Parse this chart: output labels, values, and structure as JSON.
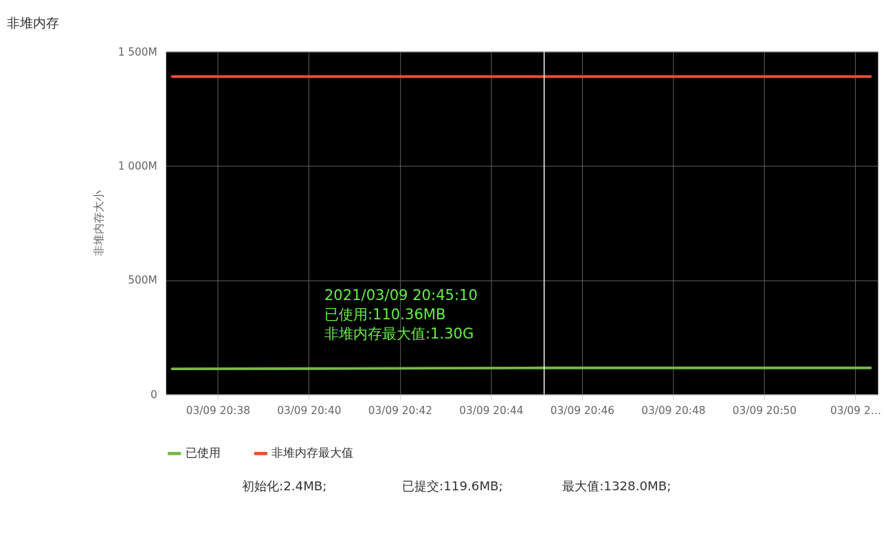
{
  "chart_data": {
    "type": "line",
    "title": "非堆内存",
    "ylabel": "非堆内存大小",
    "x": [
      "2021-03-09T20:37:00",
      "2021-03-09T20:40:00",
      "2021-03-09T20:43:00",
      "2021-03-09T20:45:10",
      "2021-03-09T20:48:00",
      "2021-03-09T20:52:20"
    ],
    "series": [
      {
        "name": "已使用",
        "color": "#7ab648",
        "values": [
          112,
          113,
          115,
          116,
          116,
          116
        ]
      },
      {
        "name": "非堆内存最大值",
        "color": "#e8512f",
        "values": [
          1392,
          1392,
          1392,
          1392,
          1392,
          1392
        ]
      }
    ],
    "xlim": [
      "2021-03-09T20:36:52",
      "2021-03-09T20:52:30"
    ],
    "xticks": [
      {
        "value": "2021-03-09T20:38:00",
        "label": "03/09 20:38"
      },
      {
        "value": "2021-03-09T20:40:00",
        "label": "03/09 20:40"
      },
      {
        "value": "2021-03-09T20:42:00",
        "label": "03/09 20:42"
      },
      {
        "value": "2021-03-09T20:44:00",
        "label": "03/09 20:44"
      },
      {
        "value": "2021-03-09T20:46:00",
        "label": "03/09 20:46"
      },
      {
        "value": "2021-03-09T20:48:00",
        "label": "03/09 20:48"
      },
      {
        "value": "2021-03-09T20:50:00",
        "label": "03/09 20:50"
      },
      {
        "value": "2021-03-09T20:52:00",
        "label": "03/09 2…"
      }
    ],
    "ylim": [
      0,
      1500
    ],
    "yticks": [
      0,
      {
        "value": 500,
        "label": "500M"
      },
      {
        "value": 1000,
        "label": "1 000M"
      },
      {
        "value": 1500,
        "label": "1 500M"
      }
    ],
    "grid": true,
    "legend": "bottom",
    "marker": "none",
    "line_style": "solid",
    "ref_lines": [
      {
        "axis": "x",
        "value": "2021-03-09T20:45:10",
        "label": null,
        "color": "#ffffff"
      }
    ],
    "annotations": [
      "2021/03/09 20:45:10\n已使用:110.36MB\n非堆内存最大值:1.30G",
      "初始化:2.4MB;",
      "已提交:119.6MB;",
      "最大值:1328.0MB;"
    ]
  }
}
